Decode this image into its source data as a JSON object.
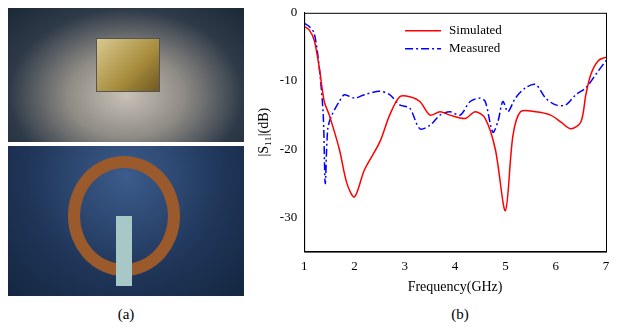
{
  "panel_labels": [
    "(a)",
    "(b)"
  ],
  "chart_data": {
    "type": "line",
    "x_label": "Frequency(GHz)",
    "y_label": "|S₁₁|(dB)",
    "xlim": [
      1,
      7
    ],
    "xticks": [
      1,
      2,
      3,
      4,
      5,
      6,
      7
    ],
    "ylim": [
      -35,
      0
    ],
    "yticks": [
      -30,
      -20,
      -10,
      0
    ],
    "grid": false,
    "legend": "top",
    "series": [
      {
        "name": "Simulated",
        "color": "#ff0000",
        "line_style": "solid",
        "x": [
          1.0,
          1.1,
          1.2,
          1.3,
          1.4,
          1.5,
          1.7,
          1.85,
          2.0,
          2.2,
          2.5,
          2.7,
          2.9,
          3.1,
          3.3,
          3.5,
          3.7,
          3.9,
          4.2,
          4.4,
          4.6,
          4.8,
          5.0,
          5.15,
          5.3,
          5.6,
          5.9,
          6.1,
          6.3,
          6.5,
          6.6,
          6.7,
          6.85,
          7.0
        ],
        "values": [
          -2,
          -2.5,
          -4,
          -8,
          -13,
          -15,
          -20,
          -25,
          -27,
          -23,
          -19,
          -15,
          -12.3,
          -12.3,
          -13,
          -15,
          -14.5,
          -15,
          -15.5,
          -14.5,
          -15.5,
          -20,
          -29,
          -18,
          -14.5,
          -14.5,
          -15,
          -16,
          -17,
          -16,
          -12,
          -9,
          -7,
          -6.5
        ]
      },
      {
        "name": "Measured",
        "color": "#0000ff",
        "line_style": "dashdot",
        "x": [
          1.0,
          1.1,
          1.2,
          1.3,
          1.38,
          1.42,
          1.47,
          1.55,
          1.7,
          1.8,
          2.0,
          2.2,
          2.5,
          2.7,
          2.9,
          3.1,
          3.3,
          3.5,
          3.7,
          3.9,
          4.1,
          4.3,
          4.5,
          4.6,
          4.75,
          4.85,
          4.95,
          5.05,
          5.2,
          5.4,
          5.6,
          5.8,
          6.0,
          6.2,
          6.4,
          6.6,
          6.8,
          7.0
        ],
        "values": [
          -1.5,
          -2,
          -3,
          -8,
          -15,
          -25,
          -17,
          -15,
          -13,
          -12,
          -12.5,
          -12,
          -11.5,
          -12,
          -13.5,
          -14,
          -17,
          -16.5,
          -15,
          -14.5,
          -15,
          -13,
          -12.5,
          -13,
          -17.5,
          -16,
          -13,
          -14.5,
          -12.5,
          -11,
          -10.5,
          -12.5,
          -13.5,
          -13.5,
          -12,
          -11,
          -9,
          -7
        ]
      }
    ]
  }
}
